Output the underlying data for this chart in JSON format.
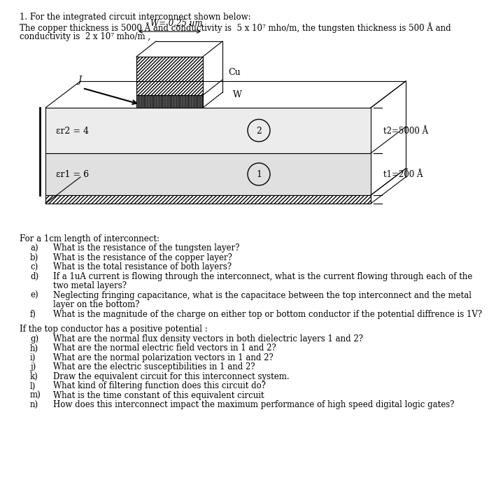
{
  "title_line1": "1. For the integrated circuit interconnect shown below:",
  "title_line2": "The copper thickness is 5000 Å and conductivity is  5 x 10⁷ mho/m, the tungsten thickness is 500 Å and",
  "title_line3": "conductivity is  2 x 10⁷ mho/m ,",
  "width_label": "W= 0.25 um",
  "cu_label": "Cu",
  "w_label": "W",
  "j_label": "J",
  "er1_label": "εr1 = 6",
  "er2_label": "εr2 = 4",
  "t1_label": "t1=200 Å",
  "t2_label": "t2=5000 Å",
  "bg_color": "#ffffff",
  "text_color": "#000000",
  "q_header1": "For a 1cm length of interconnect:",
  "q_items1": [
    [
      "a)",
      "What is the resistance of the tungsten layer?"
    ],
    [
      "b)",
      "What is the resistance of the copper layer?"
    ],
    [
      "c)",
      "What is the total resistance of both layers?"
    ],
    [
      "d)",
      "If a 1uA current is flowing through the interconnect, what is the current flowing through each of the",
      "two metal layers?"
    ],
    [
      "e)",
      "Neglecting fringing capacitance, what is the capacitace between the top interconnect and the metal",
      "layer on the bottom?"
    ],
    [
      "f)",
      "What is the magnitude of the charge on either top or bottom conductor if the potential diffrence is 1V?"
    ]
  ],
  "q_header2": "If the top conductor has a positive potential :",
  "q_items2": [
    [
      "g)",
      "What are the normal flux density vectors in both dielectric layers 1 and 2?"
    ],
    [
      "h)",
      "What are the normal electric field vectors in 1 and 2?"
    ],
    [
      "i)",
      "What are the normal polarization vectors in 1 and 2?"
    ],
    [
      "j)",
      "What are the electric susceptibilities in 1 and 2?"
    ],
    [
      "k)",
      "Draw the equivalent circuit for this interconnect system."
    ],
    [
      "l)",
      "What kind of filtering function does this circuit do?"
    ],
    [
      "m)",
      "What is the time constant of this equivalent circuit"
    ],
    [
      "n)",
      "How does this interconnect impact the maximum performance of high speed digital logic gates?"
    ]
  ]
}
